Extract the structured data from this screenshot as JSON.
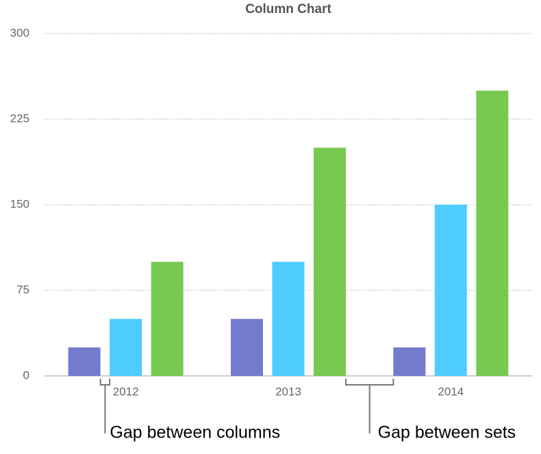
{
  "chart_data": {
    "type": "bar",
    "title": "Column Chart",
    "categories": [
      "2012",
      "2013",
      "2014"
    ],
    "series": [
      {
        "color": "#737bcf",
        "values": [
          25,
          50,
          25
        ]
      },
      {
        "color": "#4ecdfd",
        "values": [
          50,
          100,
          150
        ]
      },
      {
        "color": "#78c952",
        "values": [
          100,
          200,
          250
        ]
      }
    ],
    "ylim": [
      0,
      300
    ],
    "yticks": [
      0,
      75,
      150,
      225,
      300
    ],
    "grid": true,
    "annotations": [
      "Gap between columns",
      "Gap between sets"
    ]
  }
}
